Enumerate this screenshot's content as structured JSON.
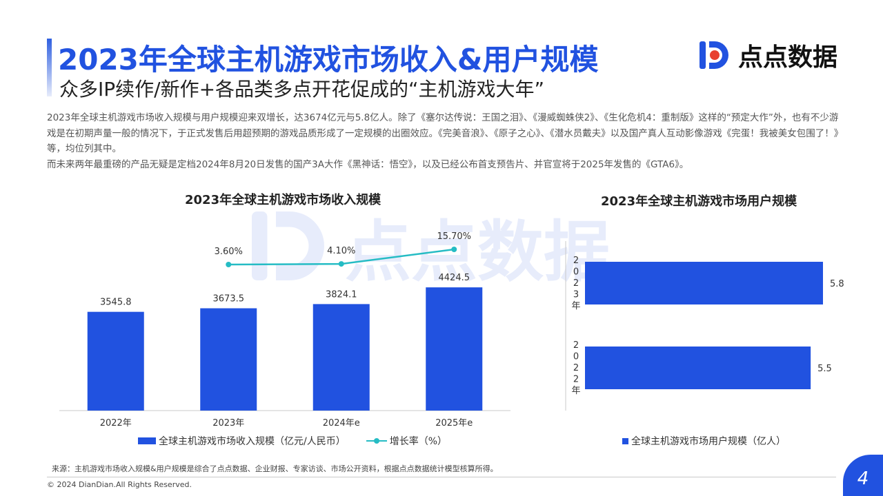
{
  "header": {
    "title": "2023年全球主机游戏市场收入&用户规模",
    "subtitle": "众多IP续作/新作+各品类多点开花促成的“主机游戏大年”"
  },
  "logo": {
    "text": "点点数据",
    "icon": "diandian-logo-icon",
    "color": "#2152e0"
  },
  "description": [
    "2023年全球主机游戏市场收入规模与用户规模迎来双增长，达3674亿元与5.8亿人。除了《塞尔达传说：王国之泪》、《漫威蜘蛛侠2》、《生化危机4：重制版》这样的“预定大作”外，也有不少游戏是在初期声量一般的情况下，于正式发售后用超预期的游戏品质形成了一定规模的出圈效应。《完美音浪》、《原子之心》、《潜水员戴夫》以及国产真人互动影像游戏《完蛋！我被美女包围了！》等，均位列其中。",
    "而未来两年最重磅的产品无疑是定档2024年8月20日发售的国产3A大作《黑神话：悟空》，以及已经公布首支预告片、并官宣将于2025年发售的《GTA6》。"
  ],
  "watermark": {
    "text": "点点数据"
  },
  "chart_data": [
    {
      "type": "bar",
      "title": "2023年全球主机游戏市场收入规模",
      "categories": [
        "2022年",
        "2023年",
        "2024年e",
        "2025年e"
      ],
      "series": [
        {
          "name": "全球主机游戏市场收入规模（亿元/人民币）",
          "values": [
            3545.8,
            3673.5,
            3824.1,
            4424.5
          ],
          "labels": [
            "3545.8",
            "3673.5",
            "3824.1",
            "4424.5"
          ],
          "color": "#2152e0"
        }
      ],
      "line_series": {
        "name": "增长率（%）",
        "x": [
          "2023年",
          "2024年e",
          "2025年e"
        ],
        "values": [
          3.6,
          4.1,
          15.7
        ],
        "labels": [
          "3.60%",
          "4.10%",
          "15.70%"
        ],
        "color": "#25bcc4"
      },
      "ylim": [
        0,
        4700
      ],
      "legend_placement": "bottom"
    },
    {
      "type": "bar",
      "orientation": "horizontal",
      "title": "2023年全球主机游戏市场用户规模",
      "categories": [
        "2023年",
        "2022年"
      ],
      "series": [
        {
          "name": "全球主机游戏市场用户规模（亿人）",
          "values": [
            5.8,
            5.5
          ],
          "labels": [
            "5.8",
            "5.5"
          ],
          "color": "#2152e0"
        }
      ],
      "xlim": [
        0,
        6.2
      ],
      "legend_placement": "bottom"
    }
  ],
  "footer": {
    "source": "来源：主机游戏市场收入规模&用户规模是综合了点点数据、企业财报、专家访谈、市场公开资料，根据点点数据统计模型核算所得。",
    "copyright": "© 2024 DianDian.All Rights Reserved.",
    "page": "4"
  }
}
